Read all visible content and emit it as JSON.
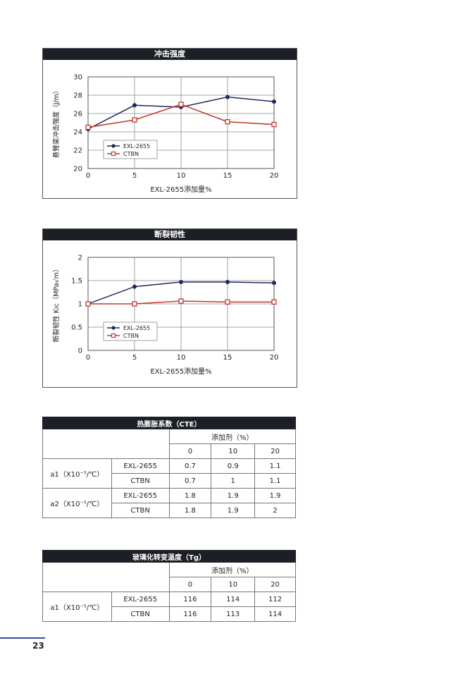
{
  "charts": [
    {
      "id": "c1",
      "title": "冲击强度",
      "chart_data": {
        "type": "line",
        "title": "冲击强度",
        "xlabel": "EXL-2655添加量%",
        "ylabel": "悬臂梁冲击强度（J/m）",
        "x": [
          0,
          5,
          10,
          15,
          20
        ],
        "xticks": [
          "0",
          "5",
          "10",
          "15",
          "20"
        ],
        "yticks": [
          "20",
          "22",
          "24",
          "26",
          "28",
          "30"
        ],
        "xlim": [
          0,
          20
        ],
        "ylim": [
          20,
          30
        ],
        "grid": true,
        "legend_position": "bottom-left",
        "series": [
          {
            "name": "EXL-2655",
            "values": [
              24.3,
              26.9,
              26.7,
              27.8,
              27.3
            ],
            "color": "#1f2a5c",
            "marker": "circle"
          },
          {
            "name": "CTBN",
            "values": [
              24.5,
              25.3,
              27.0,
              25.1,
              24.8
            ],
            "color": "#c0392b",
            "marker": "square"
          }
        ]
      }
    },
    {
      "id": "c2",
      "title": "断裂韧性",
      "chart_data": {
        "type": "line",
        "title": "断裂韧性",
        "xlabel": "EXL-2655添加量%",
        "ylabel": "断裂韧性 Kıc（MPa√m）",
        "x": [
          0,
          5,
          10,
          15,
          20
        ],
        "xticks": [
          "0",
          "5",
          "10",
          "15",
          "20"
        ],
        "yticks": [
          "0",
          "0.5",
          "1",
          "1.5",
          "2"
        ],
        "xlim": [
          0,
          20
        ],
        "ylim": [
          0,
          2
        ],
        "grid": true,
        "legend_position": "bottom-left",
        "series": [
          {
            "name": "EXL-2655",
            "values": [
              1.0,
              1.37,
              1.47,
              1.47,
              1.45
            ],
            "color": "#1f2a5c",
            "marker": "circle"
          },
          {
            "name": "CTBN",
            "values": [
              1.0,
              1.0,
              1.06,
              1.04,
              1.04
            ],
            "color": "#c0392b",
            "marker": "square"
          }
        ]
      }
    }
  ],
  "cte_table": {
    "title": "热膨胀系数（CTE）",
    "additive_header": "添加剂（%）",
    "columns": [
      "0",
      "10",
      "20"
    ],
    "groups": [
      {
        "label": "a1（X10⁻⁵/℃）",
        "rows": [
          {
            "name": "EXL-2655",
            "values": [
              "0.7",
              "0.9",
              "1.1"
            ]
          },
          {
            "name": "CTBN",
            "values": [
              "0.7",
              "1",
              "1.1"
            ]
          }
        ]
      },
      {
        "label": "a2（X10⁻⁵/℃）",
        "rows": [
          {
            "name": "EXL-2655",
            "values": [
              "1.8",
              "1.9",
              "1.9"
            ]
          },
          {
            "name": "CTBN",
            "values": [
              "1.8",
              "1.9",
              "2"
            ]
          }
        ]
      }
    ]
  },
  "tg_table": {
    "title": "玻璃化转变温度（Tg）",
    "additive_header": "添加剂（%）",
    "columns": [
      "0",
      "10",
      "20"
    ],
    "groups": [
      {
        "label": "a1（X10⁻⁵/℃）",
        "rows": [
          {
            "name": "EXL-2655",
            "values": [
              "116",
              "114",
              "112"
            ]
          },
          {
            "name": "CTBN",
            "values": [
              "116",
              "113",
              "114"
            ]
          }
        ]
      }
    ]
  },
  "page_number": "23"
}
